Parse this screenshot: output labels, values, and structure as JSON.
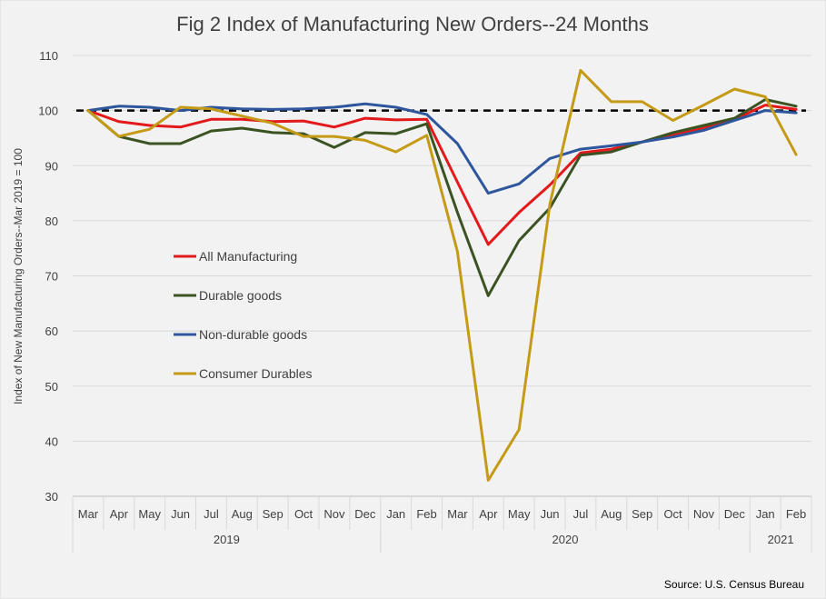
{
  "chart_data": {
    "type": "line",
    "title": "Fig 2 Index of Manufacturing New Orders--24 Months",
    "ylabel": "Index of New Manufacturing Orders--Mar 2019 = 100",
    "xlabel": "",
    "ylim": [
      30,
      110
    ],
    "yticks": [
      30,
      40,
      50,
      60,
      70,
      80,
      90,
      100,
      110
    ],
    "grid": true,
    "legend_position": "left-middle",
    "reference_line": {
      "y": 100,
      "style": "dashed",
      "color": "#000000"
    },
    "categories": [
      "Mar",
      "Apr",
      "May",
      "Jun",
      "Jul",
      "Aug",
      "Sep",
      "Oct",
      "Nov",
      "Dec",
      "Jan",
      "Feb",
      "Mar",
      "Apr",
      "May",
      "Jun",
      "Jul",
      "Aug",
      "Sep",
      "Oct",
      "Nov",
      "Dec",
      "Jan",
      "Feb"
    ],
    "year_groups": [
      {
        "label": "2019",
        "start": 0,
        "end": 9
      },
      {
        "label": "2020",
        "start": 10,
        "end": 21
      },
      {
        "label": "2021",
        "start": 22,
        "end": 23
      }
    ],
    "series": [
      {
        "name": "All Manufacturing",
        "color": "#e31a1c",
        "values": [
          100,
          98.0,
          97.3,
          97.0,
          98.4,
          98.4,
          98.0,
          98.1,
          97.0,
          98.6,
          98.3,
          98.4,
          87.0,
          75.7,
          81.5,
          86.5,
          92.3,
          93.0,
          94.3,
          95.5,
          96.8,
          98.4,
          101.0,
          100.2
        ]
      },
      {
        "name": "Durable goods",
        "color": "#3b5323",
        "values": [
          100,
          95.3,
          94.0,
          94.0,
          96.3,
          96.8,
          96.0,
          95.8,
          93.3,
          96.0,
          95.8,
          97.6,
          81.5,
          66.4,
          76.4,
          82.3,
          91.9,
          92.5,
          94.3,
          96.0,
          97.3,
          98.6,
          102.0,
          100.8
        ]
      },
      {
        "name": "Non-durable goods",
        "color": "#2e569c",
        "values": [
          100,
          100.8,
          100.6,
          100.0,
          100.6,
          100.3,
          100.2,
          100.3,
          100.6,
          101.2,
          100.6,
          99.3,
          94.0,
          85.0,
          86.7,
          91.3,
          93.0,
          93.6,
          94.3,
          95.2,
          96.4,
          98.2,
          100.0,
          99.6
        ]
      },
      {
        "name": "Consumer Durables",
        "color": "#c49a16",
        "values": [
          100,
          95.3,
          96.6,
          100.6,
          100.3,
          99.0,
          97.7,
          95.3,
          95.3,
          94.6,
          92.5,
          95.5,
          74.4,
          32.9,
          42.1,
          83.0,
          107.3,
          101.6,
          101.6,
          98.2,
          101.0,
          103.9,
          102.5,
          92.0
        ]
      }
    ],
    "source": "Source: U.S. Census Bureau"
  }
}
